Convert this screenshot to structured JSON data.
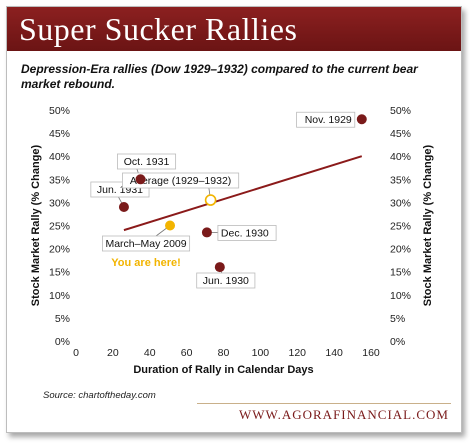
{
  "banner": {
    "title": "Super Sucker Rallies"
  },
  "subtitle": "Depression-Era rallies (Dow 1929–1932) compared to the current bear market rebound.",
  "source": "Source: chartoftheday.com",
  "site": "WWW.AGORAFINANCIAL.COM",
  "chart_data": {
    "type": "scatter",
    "xlabel": "Duration of Rally in Calendar Days",
    "ylabel": "Stock Market Rally (% Change)",
    "y2label": "Stock Market Rally (% Change)",
    "xlim": [
      0,
      160
    ],
    "ylim": [
      0,
      50
    ],
    "x_ticks": [
      0,
      20,
      40,
      60,
      80,
      100,
      120,
      140,
      160
    ],
    "y_ticks": [
      0,
      5,
      10,
      15,
      20,
      25,
      30,
      35,
      40,
      45,
      50
    ],
    "y_tick_suffix": "%",
    "grid": false,
    "points": [
      {
        "label": "Nov. 1929",
        "x": 155,
        "y": 48,
        "kind": "depression"
      },
      {
        "label": "Oct. 1931",
        "x": 35,
        "y": 35,
        "kind": "depression"
      },
      {
        "label": "Jun. 1931",
        "x": 26,
        "y": 29,
        "kind": "depression"
      },
      {
        "label": "Dec. 1930",
        "x": 71,
        "y": 23.5,
        "kind": "depression"
      },
      {
        "label": "Jun. 1930",
        "x": 78,
        "y": 16,
        "kind": "depression"
      },
      {
        "label": "Average (1929–1932)",
        "x": 73,
        "y": 30.5,
        "kind": "average"
      },
      {
        "label": "March–May 2009",
        "x": 51,
        "y": 25,
        "kind": "current"
      }
    ],
    "trendline": {
      "x": [
        26,
        155
      ],
      "y": [
        24,
        40
      ]
    },
    "annotation": "You are here!",
    "colors": {
      "depression": "#7a1a1a",
      "average_fill": "#ffffff",
      "average_stroke": "#f2b400",
      "current": "#f2b400",
      "trend": "#8b1a1a",
      "annotation": "#f2b400",
      "banner": "#7a1a1a"
    }
  }
}
